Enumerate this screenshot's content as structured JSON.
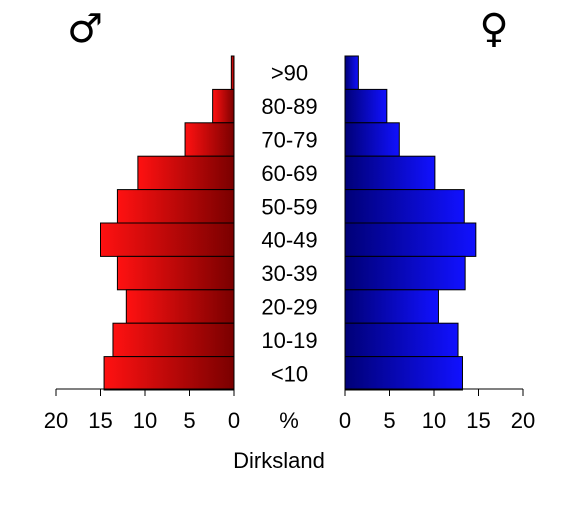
{
  "chart_data": {
    "type": "bar",
    "title": "",
    "xlabel": "Dirksland",
    "unit_label": "%",
    "male_symbol": "♂",
    "female_symbol": "♀",
    "categories": [
      ">90",
      "80-89",
      "70-79",
      "60-69",
      "50-59",
      "40-49",
      "30-39",
      "20-29",
      "10-19",
      "<10"
    ],
    "series": [
      {
        "side": "left",
        "values": [
          0.3,
          2.4,
          5.5,
          10.8,
          13.1,
          15.0,
          13.1,
          12.1,
          13.6,
          14.6
        ],
        "color_light": "#ff1111",
        "color_dark": "#7a0000"
      },
      {
        "side": "right",
        "values": [
          1.5,
          4.7,
          6.1,
          10.1,
          13.4,
          14.7,
          13.5,
          10.5,
          12.7,
          13.2
        ],
        "color_light": "#1111ff",
        "color_dark": "#000077"
      }
    ],
    "ticks": [
      "20",
      "15",
      "10",
      "5",
      "0",
      "0",
      "5",
      "10",
      "15",
      "20"
    ],
    "xlim": [
      0,
      20
    ],
    "grid": false,
    "legend": "none"
  }
}
